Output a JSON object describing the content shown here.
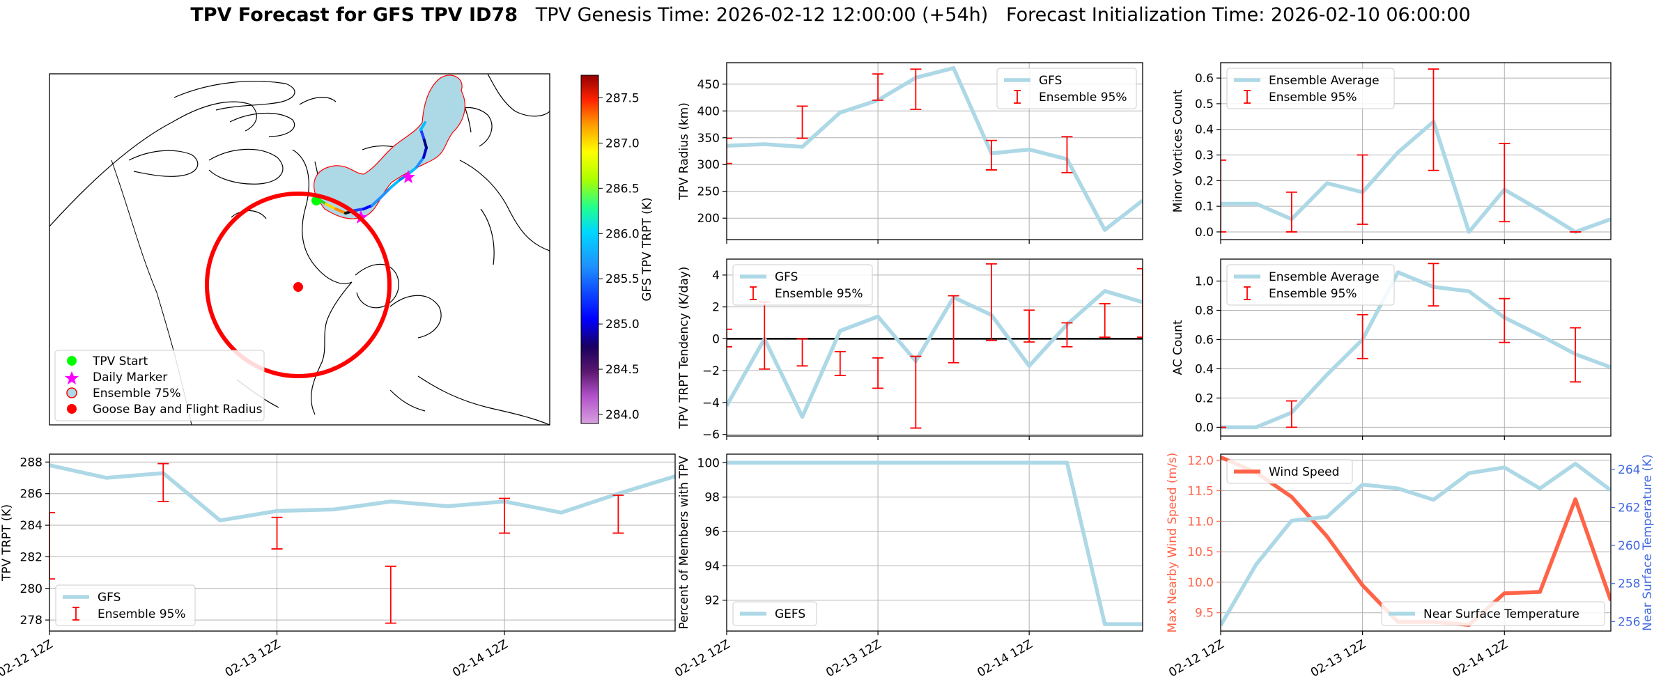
{
  "figure": {
    "title_bold": "TPV Forecast for GFS TPV ID78",
    "title_rest": "   TPV Genesis Time: 2026-02-12 12:00:00 (+54h)   Forecast Initialization Time: 2026-02-10 06:00:00"
  },
  "colors": {
    "main_line": "#add8e6",
    "error_bar": "#ff0000",
    "wind": "#ff6347",
    "temp_axis": "#4169e1",
    "zero_line": "#000000"
  },
  "map": {
    "legend": [
      "TPV Start",
      "Daily Marker",
      "Ensemble 75%",
      "Goose Bay and Flight Radius"
    ],
    "colorbar_label": "GFS TPV TRPT (K)",
    "colorbar_ticks": [
      "287.5",
      "287.0",
      "286.5",
      "286.0",
      "285.5",
      "285.0",
      "284.5",
      "284.0"
    ]
  },
  "chart_data": [
    {
      "id": "radius",
      "type": "line",
      "ylabel": "TPV Radius (km)",
      "ylim": [
        160,
        490
      ],
      "yticks": [
        200,
        250,
        300,
        350,
        400,
        450
      ],
      "x_tick_labels": [
        "02-12 12Z",
        "02-13 12Z",
        "02-14 12Z"
      ],
      "legend_location": "upper right",
      "series": [
        {
          "name": "GFS",
          "values": [
            335,
            338,
            333,
            397,
            420,
            462,
            480,
            321,
            328,
            310,
            178,
            233
          ]
        }
      ],
      "errorbars": {
        "name": "Ensemble 95%",
        "ranges": [
          [
            302,
            349
          ],
          null,
          [
            349,
            409
          ],
          null,
          [
            420,
            469
          ],
          [
            403,
            478
          ],
          null,
          [
            290,
            345
          ],
          null,
          [
            285,
            352
          ],
          null
        ]
      }
    },
    {
      "id": "minor_vortices",
      "type": "line",
      "ylabel": "Minor Vortices Count",
      "ylim": [
        -0.03,
        0.66
      ],
      "yticks": [
        0.0,
        0.1,
        0.2,
        0.3,
        0.4,
        0.5,
        0.6
      ],
      "legend_location": "upper left",
      "series": [
        {
          "name": "Ensemble Average",
          "values": [
            0.11,
            0.11,
            0.05,
            0.19,
            0.155,
            0.31,
            0.43,
            0.0,
            0.165,
            0.085,
            0.0,
            0.05
          ]
        }
      ],
      "errorbars": {
        "name": "Ensemble 95%",
        "ranges": [
          [
            0.0,
            0.28
          ],
          null,
          [
            0.0,
            0.155
          ],
          null,
          [
            0.03,
            0.3
          ],
          null,
          [
            0.24,
            0.635
          ],
          null,
          [
            0.04,
            0.345
          ],
          null,
          [
            0.0,
            0.0
          ]
        ]
      }
    },
    {
      "id": "tendency",
      "type": "line",
      "ylabel": "TPV TRPT Tendency (K/day)",
      "ylim": [
        -6.1,
        5.0
      ],
      "yticks": [
        -6,
        -4,
        -2,
        0,
        2,
        4
      ],
      "legend_location": "upper left",
      "series": [
        {
          "name": "GFS",
          "values": [
            -4.2,
            0.0,
            -4.9,
            0.5,
            1.4,
            -1.4,
            2.6,
            1.5,
            -1.7,
            0.9,
            3.0,
            2.3
          ]
        }
      ],
      "errorbars": {
        "name": "Ensemble 95%",
        "ranges": [
          [
            -0.5,
            0.6
          ],
          [
            -1.9,
            2.3
          ],
          [
            -1.7,
            0.0
          ],
          [
            -2.3,
            -0.8
          ],
          [
            -3.1,
            -1.2
          ],
          [
            -5.6,
            -1.1
          ],
          [
            -1.5,
            2.7
          ],
          [
            -0.1,
            4.7
          ],
          [
            -0.2,
            1.8
          ],
          [
            -0.5,
            1.0
          ],
          [
            0.1,
            2.2
          ],
          [
            0.1,
            4.4
          ]
        ]
      }
    },
    {
      "id": "ac_count",
      "type": "line",
      "ylabel": "AC Count",
      "ylim": [
        -0.06,
        1.15
      ],
      "yticks": [
        0.0,
        0.2,
        0.4,
        0.6,
        0.8,
        1.0
      ],
      "legend_location": "upper left",
      "series": [
        {
          "name": "Ensemble Average",
          "values": [
            0.0,
            0.0,
            0.1,
            0.36,
            0.6,
            1.06,
            0.96,
            0.93,
            0.75,
            0.63,
            0.5,
            0.41
          ]
        }
      ],
      "errorbars": {
        "name": "Ensemble 95%",
        "ranges": [
          [
            0.0,
            0.0
          ],
          null,
          [
            0.0,
            0.18
          ],
          null,
          [
            0.47,
            0.77
          ],
          null,
          [
            0.83,
            1.12
          ],
          null,
          [
            0.58,
            0.88
          ],
          null,
          [
            0.31,
            0.68
          ]
        ]
      }
    },
    {
      "id": "trpt",
      "type": "line",
      "ylabel": "TPV TRPT (K)",
      "ylim": [
        277.3,
        288.5
      ],
      "yticks": [
        278,
        280,
        282,
        284,
        286,
        288
      ],
      "x_tick_labels": [
        "02-12 12Z",
        "02-13 12Z",
        "02-14 12Z"
      ],
      "legend_location": "lower left",
      "series": [
        {
          "name": "GFS",
          "values": [
            287.8,
            287.0,
            287.3,
            284.3,
            284.9,
            285.0,
            285.5,
            285.2,
            285.5,
            284.8,
            286.0,
            287.1
          ]
        }
      ],
      "errorbars": {
        "name": "Ensemble 95%",
        "ranges": [
          [
            280.6,
            284.8
          ],
          null,
          [
            285.5,
            287.9
          ],
          null,
          [
            282.5,
            284.5
          ],
          null,
          [
            277.8,
            281.4
          ],
          null,
          [
            283.5,
            285.7
          ],
          null,
          [
            283.5,
            285.9
          ]
        ]
      }
    },
    {
      "id": "percent_members",
      "type": "line",
      "ylabel": "Percent of Members with TPV",
      "ylim": [
        90.2,
        100.5
      ],
      "yticks": [
        92,
        94,
        96,
        98,
        100
      ],
      "x_tick_labels": [
        "02-12 12Z",
        "02-13 12Z",
        "02-14 12Z"
      ],
      "legend_location": "lower left",
      "series": [
        {
          "name": "GEFS",
          "values": [
            100,
            100,
            100,
            100,
            100,
            100,
            100,
            100,
            100,
            100,
            90.6,
            90.6
          ]
        }
      ]
    },
    {
      "id": "wind_temp",
      "type": "line",
      "ylabel": "Max Nearby Wind Speed (m/s)",
      "ylabel_right": "Near Surface Temperature (K)",
      "ylim": [
        9.2,
        12.1
      ],
      "yticks": [
        9.5,
        10.0,
        10.5,
        11.0,
        11.5,
        12.0
      ],
      "ylim_right": [
        255.5,
        264.8
      ],
      "yticks_right": [
        256,
        258,
        260,
        262,
        264
      ],
      "x_tick_labels": [
        "02-12 12Z",
        "02-13 12Z",
        "02-14 12Z"
      ],
      "series": [
        {
          "name": "Wind Speed",
          "axis": "left",
          "values": [
            12.05,
            11.8,
            11.4,
            10.75,
            9.95,
            9.35,
            9.35,
            9.3,
            9.82,
            9.84,
            11.36,
            9.7
          ]
        },
        {
          "name": "Near Surface Temperature",
          "axis": "right",
          "values": [
            255.8,
            259.0,
            261.3,
            261.5,
            263.2,
            263.0,
            262.4,
            263.8,
            264.1,
            263.0,
            264.3,
            262.9
          ]
        }
      ]
    }
  ]
}
